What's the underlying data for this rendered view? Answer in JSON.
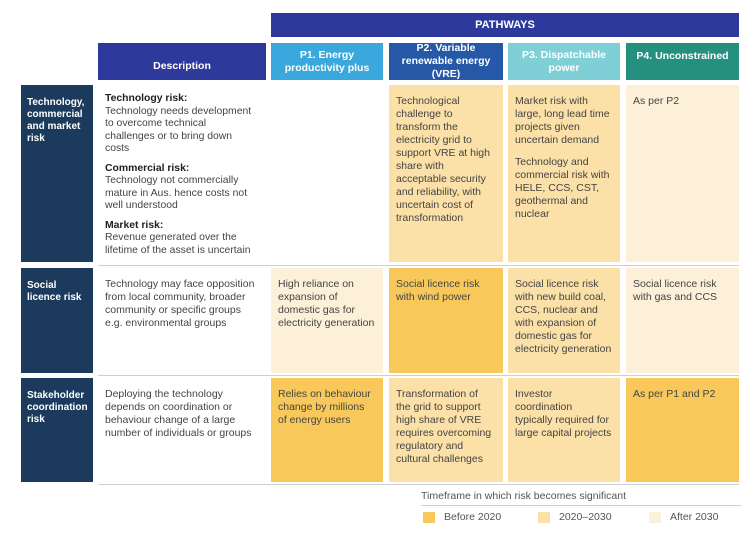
{
  "pathways_label": "PATHWAYS",
  "columns": {
    "description": "Description",
    "p1": "P1. Energy productivity plus",
    "p2": "P2. Variable renewable energy (VRE)",
    "p3": "P3. Dispatchable power",
    "p4": "P4. Unconstrained"
  },
  "rows": {
    "tcm": {
      "label": "Technology, commercial and market risk",
      "description": {
        "tech_title": "Technology risk:",
        "tech_text": "Technology needs development to overcome technical challenges or to bring down costs",
        "comm_title": "Commercial risk:",
        "comm_text": "Technology not commercially mature in Aus. hence costs not well understood",
        "market_title": "Market risk:",
        "market_text": "Revenue generated over the lifetime of the asset is uncertain"
      },
      "p1": "",
      "p2": "Technological challenge to transform the electricity grid to support VRE at high share with acceptable security and reliability, with uncertain cost of transformation",
      "p3_a": "Market risk with large, long lead time projects given uncertain demand",
      "p3_b": "Technology and commercial risk with HELE, CCS, CST, geothermal and nuclear",
      "p4": "As per P2"
    },
    "social": {
      "label": "Social licence risk",
      "description": "Technology may face opposition from local community, broader community or specific groups e.g. environmental groups",
      "p1": "High reliance on expansion of domestic gas for electricity generation",
      "p2": "Social licence risk with wind power",
      "p3": "Social licence risk with new build coal, CCS, nuclear and with expansion of domestic gas for electricity generation",
      "p4": "Social licence risk with gas and CCS"
    },
    "stakeholder": {
      "label": "Stakeholder coordination risk",
      "description": "Deploying the technology depends on coordination or behaviour change of a large number of individuals or groups",
      "p1": "Relies on behaviour change by millions of energy users",
      "p2": "Transformation of the grid to support high share of VRE requires overcoming regulatory and cultural challenges",
      "p3": "Investor coordination typically required for large capital projects",
      "p4": "As per P1 and P2"
    }
  },
  "legend": {
    "title": "Timeframe in which risk becomes significant",
    "items": [
      {
        "label": "Before 2020",
        "color": "#f8c95a"
      },
      {
        "label": "2020–2030",
        "color": "#fbe0a8"
      },
      {
        "label": "After 2030",
        "color": "#fdf0d9"
      }
    ]
  },
  "colors": {
    "navy": "#1b3a5c",
    "header_blue": "#2d3a9b",
    "p1_blue": "#3aa8dc",
    "p2_blue": "#2558a6",
    "p3_teal": "#7fcfd6",
    "p4_teal": "#26907f",
    "before_2020": "#f8c95a",
    "between_2020_2030": "#fbe0a8",
    "after_2030": "#fdf0d9"
  }
}
